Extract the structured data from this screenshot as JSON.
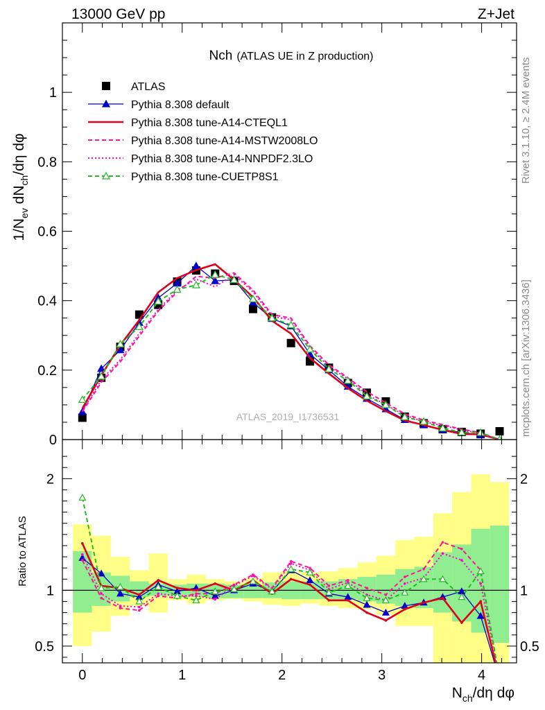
{
  "header": {
    "left": "13000 GeV pp",
    "right": "Z+Jet"
  },
  "side_text": {
    "rivet": "Rivet 3.1.10, ≥ 2.4M events",
    "mcplots": "mcplots.cern.ch [arXiv:1306.3436]"
  },
  "watermark": "ATLAS_2019_I1736531",
  "chart_data": [
    {
      "type": "line",
      "panel": "main",
      "title_main": "Nch",
      "title_sub": "(ATLAS UE in Z production)",
      "ylabel": "1/N",
      "ylabel_parts": {
        "a": "1/N",
        "a_sub": "ev",
        "b": " dN",
        "b_sub": "ch",
        "c": "/dη dφ"
      },
      "xlim": [
        -0.2,
        4.35
      ],
      "ylim": [
        0,
        1.2
      ],
      "yticks": [
        0,
        0.2,
        0.4,
        0.6,
        0.8,
        1
      ],
      "ytick_labels": [
        "0",
        "0.2",
        "0.4",
        "0.6",
        "0.8",
        "1"
      ],
      "x": [
        0,
        0.19,
        0.38,
        0.57,
        0.76,
        0.95,
        1.14,
        1.33,
        1.52,
        1.71,
        1.9,
        2.09,
        2.28,
        2.47,
        2.66,
        2.85,
        3.04,
        3.23,
        3.42,
        3.61,
        3.8,
        3.99,
        4.18
      ],
      "legend_position": "top-left",
      "series": [
        {
          "name": "ATLAS",
          "color": "#000000",
          "marker": "square",
          "line": "none",
          "values": [
            0.063,
            0.178,
            0.267,
            0.36,
            0.388,
            0.455,
            0.487,
            0.478,
            0.457,
            0.376,
            0.352,
            0.278,
            0.225,
            0.207,
            0.163,
            0.135,
            0.11,
            0.066,
            0.047,
            0.03,
            0.022,
            0.017,
            0.024
          ]
        },
        {
          "name": "Pythia 8.308 default",
          "color": "#0000cc",
          "marker": "triangle-filled",
          "line": "solid",
          "values": [
            0.08,
            0.204,
            0.258,
            0.337,
            0.408,
            0.45,
            0.5,
            0.457,
            0.46,
            0.395,
            0.348,
            0.327,
            0.246,
            0.2,
            0.153,
            0.118,
            0.088,
            0.057,
            0.042,
            0.028,
            0.021,
            0.013,
            0.0
          ]
        },
        {
          "name": "Pythia 8.308 tune-A14-CTEQL1",
          "color": "#e0001a",
          "marker": "none",
          "line": "solid-thick",
          "values": [
            0.09,
            0.185,
            0.272,
            0.344,
            0.424,
            0.465,
            0.488,
            0.505,
            0.46,
            0.41,
            0.342,
            0.305,
            0.235,
            0.19,
            0.148,
            0.112,
            0.082,
            0.055,
            0.042,
            0.028,
            0.016,
            0.015,
            0.0
          ]
        },
        {
          "name": "Pythia 8.308 tune-A14-MSTW2008LO",
          "color": "#ff1493",
          "marker": "none",
          "line": "dashed",
          "values": [
            0.08,
            0.165,
            0.224,
            0.298,
            0.37,
            0.425,
            0.47,
            0.465,
            0.48,
            0.43,
            0.36,
            0.35,
            0.27,
            0.215,
            0.178,
            0.138,
            0.106,
            0.074,
            0.056,
            0.043,
            0.03,
            0.02,
            0.0
          ]
        },
        {
          "name": "Pythia 8.308 tune-A14-NNPDF2.3LO",
          "color": "#ff00cc",
          "marker": "none",
          "line": "dotted",
          "values": [
            0.083,
            0.172,
            0.23,
            0.305,
            0.375,
            0.43,
            0.462,
            0.44,
            0.475,
            0.425,
            0.355,
            0.345,
            0.265,
            0.21,
            0.175,
            0.13,
            0.1,
            0.07,
            0.052,
            0.04,
            0.028,
            0.018,
            0.0
          ]
        },
        {
          "name": "Pythia 8.308 tune-CUETP8S1",
          "color": "#22bb22",
          "marker": "triangle-open",
          "line": "dashed",
          "values": [
            0.115,
            0.182,
            0.275,
            0.325,
            0.398,
            0.432,
            0.445,
            0.475,
            0.46,
            0.405,
            0.35,
            0.33,
            0.26,
            0.203,
            0.17,
            0.125,
            0.1,
            0.065,
            0.052,
            0.033,
            0.021,
            0.02,
            0.0
          ]
        }
      ]
    },
    {
      "type": "line",
      "panel": "ratio",
      "ylabel": "Ratio to ATLAS",
      "xlabel": "N",
      "xlabel_parts": {
        "a": "N",
        "a_sub": "ch",
        "b": "/dη dφ"
      },
      "xlim": [
        -0.2,
        4.35
      ],
      "ylim": [
        0.35,
        2.35
      ],
      "yticks": [
        0.5,
        1,
        2
      ],
      "ytick_labels": [
        "0.5",
        "1",
        "2"
      ],
      "xticks": [
        0,
        1,
        2,
        3,
        4
      ],
      "xtick_labels": [
        "0",
        "1",
        "2",
        "3",
        "4"
      ],
      "reference_line": 1,
      "bands": {
        "inner_color": "#90ee90",
        "outer_color": "#ffff88",
        "inner": [
          [
            0.8,
            1.35
          ],
          [
            0.86,
            1.16
          ],
          [
            0.9,
            1.13
          ],
          [
            0.94,
            1.08
          ],
          [
            0.95,
            1.06
          ],
          [
            0.95,
            1.05
          ],
          [
            0.94,
            1.06
          ],
          [
            0.93,
            1.06
          ],
          [
            0.93,
            1.05
          ],
          [
            0.93,
            1.04
          ],
          [
            0.93,
            1.07
          ],
          [
            0.92,
            1.08
          ],
          [
            0.92,
            1.08
          ],
          [
            0.92,
            1.08
          ],
          [
            0.92,
            1.1
          ],
          [
            0.9,
            1.12
          ],
          [
            0.88,
            1.14
          ],
          [
            0.86,
            1.19
          ],
          [
            0.84,
            1.21
          ],
          [
            0.8,
            1.34
          ],
          [
            0.72,
            1.41
          ],
          [
            0.62,
            1.55
          ],
          [
            0.53,
            1.58
          ]
        ],
        "outer": [
          [
            0.5,
            1.59
          ],
          [
            0.63,
            1.49
          ],
          [
            0.77,
            1.3
          ],
          [
            0.86,
            1.18
          ],
          [
            0.8,
            1.33
          ],
          [
            0.91,
            1.1
          ],
          [
            0.88,
            1.14
          ],
          [
            0.91,
            1.1
          ],
          [
            0.92,
            1.08
          ],
          [
            0.9,
            1.11
          ],
          [
            0.87,
            1.16
          ],
          [
            0.86,
            1.17
          ],
          [
            0.88,
            1.16
          ],
          [
            0.86,
            1.17
          ],
          [
            0.84,
            1.2
          ],
          [
            0.83,
            1.25
          ],
          [
            0.78,
            1.31
          ],
          [
            0.68,
            1.45
          ],
          [
            0.68,
            1.48
          ],
          [
            0.35,
            1.69
          ],
          [
            0.35,
            1.88
          ],
          [
            0.35,
            2.04
          ],
          [
            0.35,
            1.97
          ]
        ]
      },
      "series": [
        {
          "name": "Pythia 8.308 default",
          "color": "#0000cc",
          "marker": "triangle-filled",
          "line": "solid",
          "values": [
            1.29,
            1.15,
            0.97,
            0.94,
            1.05,
            0.99,
            1.02,
            0.95,
            1.0,
            1.06,
            0.99,
            1.18,
            1.09,
            0.97,
            0.94,
            0.87,
            0.8,
            0.86,
            0.89,
            0.94,
            0.99,
            0.77,
            0.2
          ]
        },
        {
          "name": "Pythia 8.308 tune-A14-CTEQL1",
          "color": "#e0001a",
          "marker": "none",
          "line": "solid-thick",
          "values": [
            1.42,
            1.04,
            1.02,
            0.96,
            1.09,
            1.02,
            1.0,
            1.06,
            1.0,
            1.09,
            0.97,
            1.1,
            1.05,
            0.91,
            0.91,
            0.8,
            0.73,
            0.83,
            0.89,
            0.93,
            0.71,
            0.9,
            0.2
          ]
        },
        {
          "name": "Pythia 8.308 tune-A14-MSTW2008LO",
          "color": "#ff1493",
          "marker": "none",
          "line": "dashed",
          "values": [
            1.27,
            0.93,
            0.84,
            0.82,
            0.95,
            0.93,
            0.97,
            0.97,
            1.05,
            1.14,
            1.02,
            1.26,
            1.2,
            1.04,
            1.09,
            1.02,
            0.96,
            1.12,
            1.19,
            1.43,
            1.37,
            1.18,
            0.2
          ]
        },
        {
          "name": "Pythia 8.308 tune-A14-NNPDF2.3LO",
          "color": "#ff00cc",
          "marker": "none",
          "line": "dotted",
          "values": [
            1.32,
            0.97,
            0.86,
            0.85,
            0.97,
            0.95,
            0.95,
            0.92,
            1.04,
            1.13,
            1.01,
            1.24,
            1.18,
            1.01,
            1.07,
            0.96,
            0.91,
            1.06,
            1.11,
            1.33,
            1.27,
            1.06,
            0.2
          ]
        },
        {
          "name": "Pythia 8.308 tune-CUETP8S1",
          "color": "#22bb22",
          "marker": "triangle-open",
          "line": "dashed",
          "values": [
            1.83,
            1.02,
            1.03,
            0.9,
            1.03,
            0.95,
            0.91,
            0.99,
            1.01,
            1.08,
            0.99,
            1.19,
            1.16,
            0.98,
            1.04,
            0.93,
            0.91,
            0.98,
            1.1,
            1.1,
            0.94,
            1.17,
            0.2
          ]
        }
      ]
    }
  ]
}
